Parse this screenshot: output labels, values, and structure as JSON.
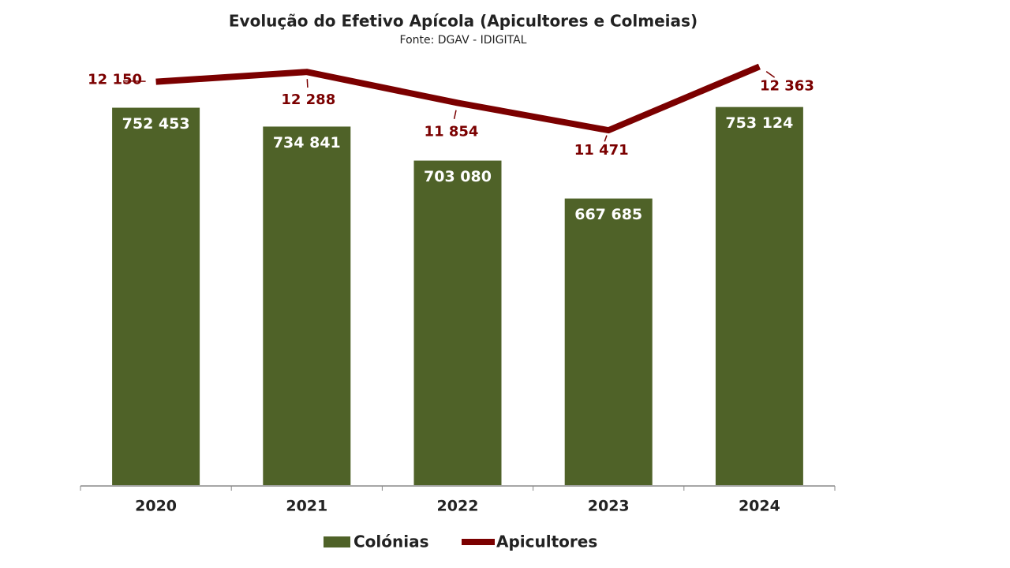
{
  "chart_data": {
    "type": "bar-line",
    "title": "Evolução do Efetivo Apícola (Apicultores e Colmeias)",
    "subtitle": "Fonte: DGAV - IDIGITAL",
    "categories": [
      "2020",
      "2021",
      "2022",
      "2023",
      "2024"
    ],
    "ylim": [
      400000,
      800000
    ],
    "y2lim": [
      6500,
      12500
    ],
    "legend": "bottom",
    "series": [
      {
        "name": "Colónias",
        "type": "bar",
        "color": "#4f6228",
        "values": [
          752453,
          734841,
          703080,
          667685,
          753124
        ],
        "value_labels": [
          "752 453",
          "734 841",
          "703 080",
          "667 685",
          "753 124"
        ]
      },
      {
        "name": "Apicultores",
        "type": "line",
        "axis": "y2",
        "color": "#7b0000",
        "values": [
          12150,
          12288,
          11854,
          11471,
          12363
        ],
        "value_labels": [
          "12 150",
          "12 288",
          "11 854",
          "11 471",
          "12 363"
        ]
      }
    ]
  }
}
